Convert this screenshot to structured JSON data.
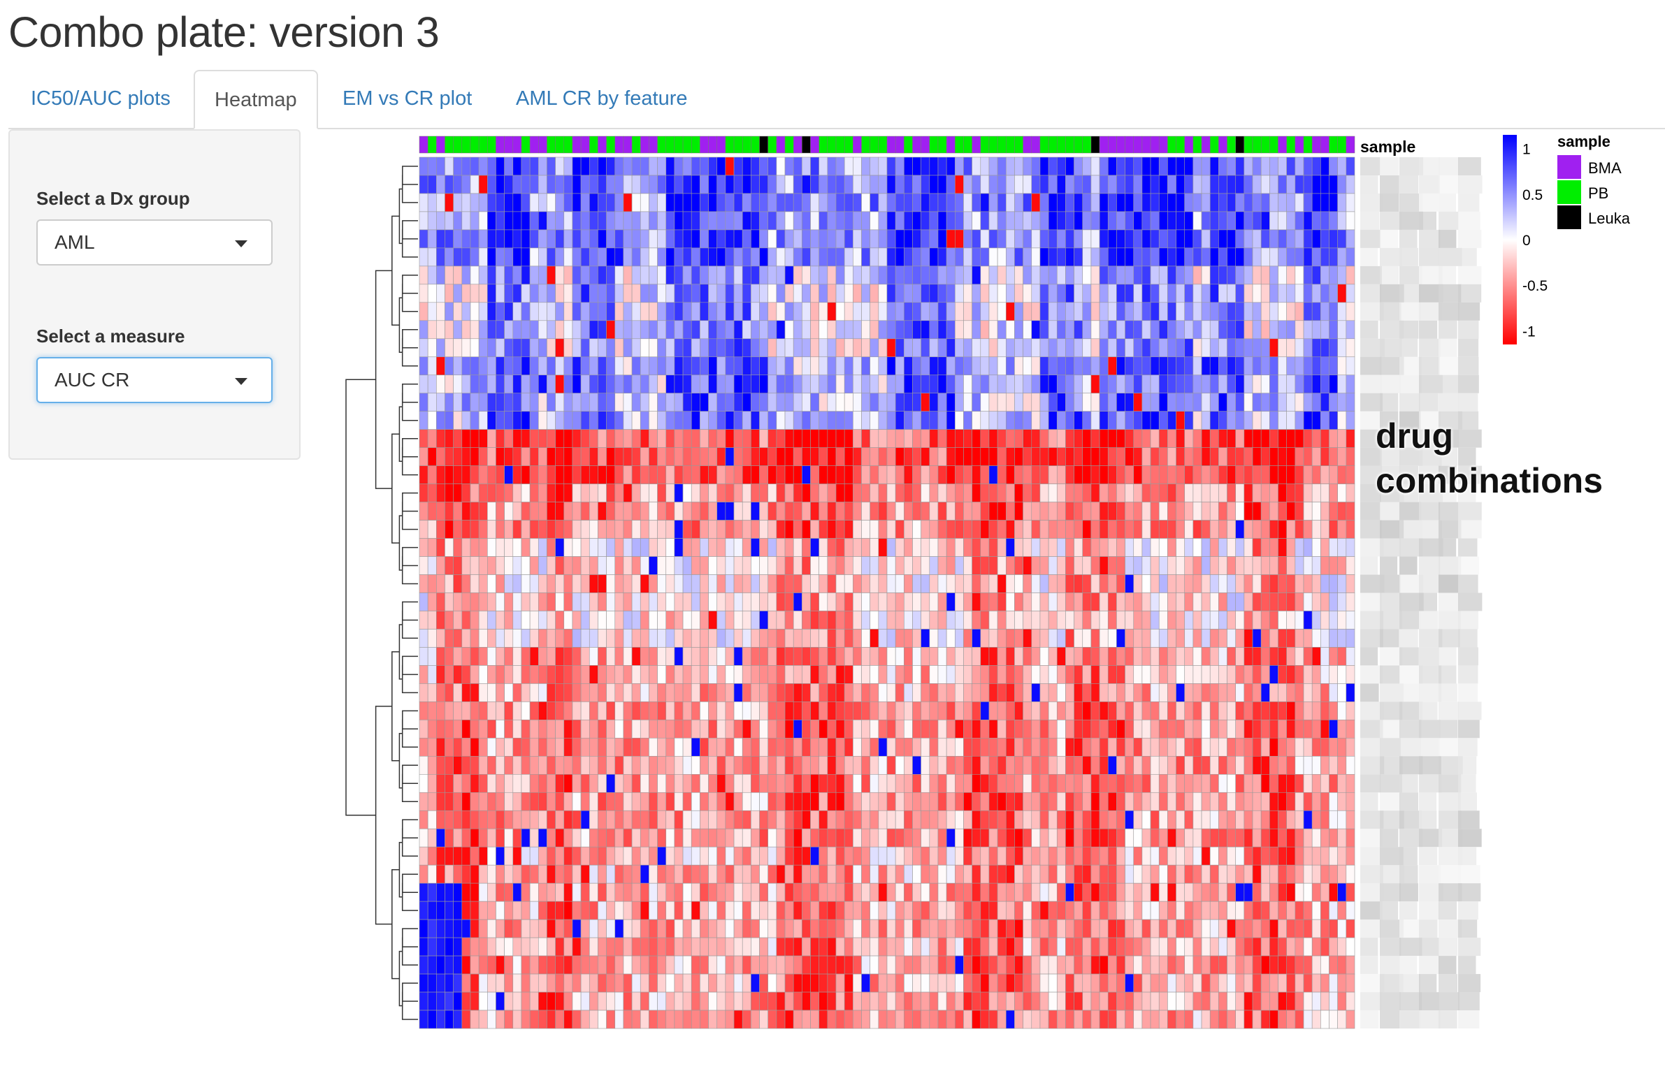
{
  "app": {
    "title": "Combo plate: version 3"
  },
  "tabs": [
    {
      "label": "IC50/AUC plots",
      "active": false
    },
    {
      "label": "Heatmap",
      "active": true
    },
    {
      "label": "EM vs CR plot",
      "active": false
    },
    {
      "label": "AML CR by feature",
      "active": false
    }
  ],
  "sidebar": {
    "dx_group": {
      "label": "Select a Dx group",
      "value": "AML"
    },
    "measure": {
      "label": "Select a measure",
      "value": "AUC CR"
    }
  },
  "heatmap": {
    "annotation_title": "sample",
    "row_annotation": "drug combinations",
    "legend_title": "sample",
    "legend": [
      {
        "label": "BMA",
        "color": "#a020f0"
      },
      {
        "label": "PB",
        "color": "#00ee00"
      },
      {
        "label": "Leuka",
        "color": "#000000"
      }
    ],
    "colorbar": {
      "ticks": [
        {
          "label": "1",
          "value": 1
        },
        {
          "label": "0.5",
          "value": 0.5
        },
        {
          "label": "0",
          "value": 0
        },
        {
          "label": "-0.5",
          "value": -0.5
        },
        {
          "label": "-1",
          "value": -1
        }
      ],
      "color_high": "#0000ff",
      "color_mid": "#ffffff",
      "color_low": "#ff0000",
      "range": [
        -1.15,
        1.15
      ]
    },
    "n_rows": 48,
    "n_cols": 110
  },
  "colors": {
    "link": "#337ab7",
    "focus": "#66afe9"
  }
}
